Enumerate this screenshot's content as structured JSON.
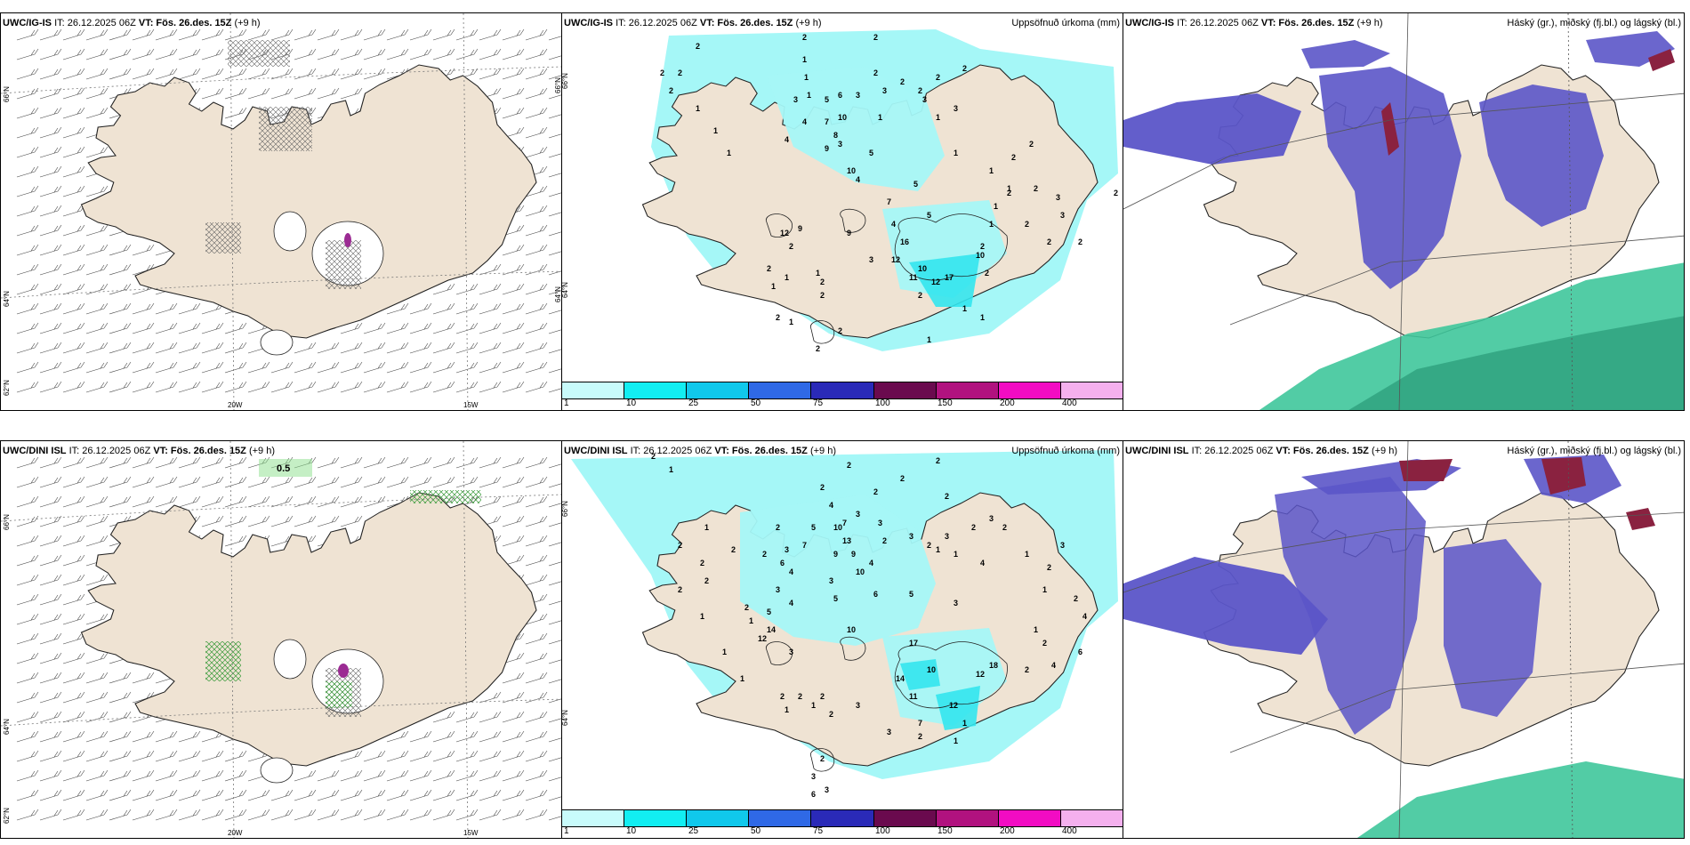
{
  "colors": {
    "land": "#efe3d3",
    "coast": "#222222",
    "precip": "#a5f7f7",
    "precip_heavy": "#33e6ee",
    "cloud_high": "#5b55c8",
    "cloud_mid": "#3ad0e0",
    "cloud_low": "#3fc79b",
    "cloud_red": "#8a2240"
  },
  "panels": {
    "ig_wind": {
      "model": "UWC/IG-IS",
      "it": "IT: 26.12.2025 06Z",
      "vt": "VT: Fös. 26.des. 15Z",
      "lead": "(+9 h)",
      "lat1": "66°N",
      "lat2": "64°N",
      "lat3": "62°N",
      "lon1": "20W",
      "lon2": "15W"
    },
    "ig_precip": {
      "model": "UWC/IG-IS",
      "it": "IT: 26.12.2025 06Z",
      "vt": "VT: Fös. 26.des. 15Z",
      "lead": "(+9 h)",
      "right_title": "Uppsöfnuð úrkoma (mm)",
      "lat1": "66°N",
      "lat2": "64°N"
    },
    "ig_cloud": {
      "model": "UWC/IG-IS",
      "it": "IT: 26.12.2025 06Z",
      "vt": "VT: Fös. 26.des. 15Z",
      "lead": "(+9 h)",
      "right_title": "Háský (gr.), miðský (fj.bl.) og lágský (bl.)"
    },
    "dini_wind": {
      "model": "UWC/DINI ISL",
      "it": "IT: 26.12.2025 06Z",
      "vt": "VT: Fös. 26.des. 15Z",
      "lead": "(+9 h)",
      "lat1": "66°N",
      "lat2": "64°N",
      "lat3": "62°N",
      "lon1": "20W",
      "lon2": "15W",
      "marker": "0.5"
    },
    "dini_precip": {
      "model": "UWC/DINI ISL",
      "it": "IT: 26.12.2025 06Z",
      "vt": "VT: Fös. 26.des. 15Z",
      "lead": "(+9 h)",
      "right_title": "Uppsöfnuð úrkoma (mm)",
      "lat1": "66°N",
      "lat2": "64°N"
    },
    "dini_cloud": {
      "model": "UWC/DINI ISL",
      "it": "IT: 26.12.2025 06Z",
      "vt": "VT: Fös. 26.des. 15Z",
      "lead": "(+9 h)",
      "right_title": "Háský (gr.), miðský (fj.bl.) og lágský (bl.)"
    }
  },
  "colorbar": {
    "labels": [
      "1",
      "10",
      "25",
      "50",
      "75",
      "100",
      "150",
      "200",
      "400"
    ],
    "colors": [
      "#c8fbfb",
      "#12eef2",
      "#10c8ec",
      "#2f69e6",
      "#2a2ab8",
      "#6a0a4e",
      "#b1127f",
      "#f20cc3",
      "#f5b0ee"
    ]
  },
  "precip_ig": [
    {
      "v": "2",
      "x": 150,
      "y": 40
    },
    {
      "v": "2",
      "x": 270,
      "y": 30
    },
    {
      "v": "2",
      "x": 350,
      "y": 30
    },
    {
      "v": "2",
      "x": 350,
      "y": 70
    },
    {
      "v": "2",
      "x": 110,
      "y": 70
    },
    {
      "v": "2",
      "x": 130,
      "y": 70
    },
    {
      "v": "2",
      "x": 120,
      "y": 90
    },
    {
      "v": "2",
      "x": 380,
      "y": 80
    },
    {
      "v": "2",
      "x": 400,
      "y": 90
    },
    {
      "v": "2",
      "x": 450,
      "y": 65
    },
    {
      "v": "2",
      "x": 420,
      "y": 75
    },
    {
      "v": "1",
      "x": 270,
      "y": 55
    },
    {
      "v": "1",
      "x": 272,
      "y": 75
    },
    {
      "v": "1",
      "x": 275,
      "y": 95
    },
    {
      "v": "1",
      "x": 150,
      "y": 110
    },
    {
      "v": "1",
      "x": 170,
      "y": 135
    },
    {
      "v": "1",
      "x": 185,
      "y": 160
    },
    {
      "v": "1",
      "x": 355,
      "y": 120
    },
    {
      "v": "1",
      "x": 420,
      "y": 120
    },
    {
      "v": "1",
      "x": 440,
      "y": 160
    },
    {
      "v": "1",
      "x": 480,
      "y": 180
    },
    {
      "v": "1",
      "x": 500,
      "y": 200
    },
    {
      "v": "3",
      "x": 405,
      "y": 100
    },
    {
      "v": "3",
      "x": 440,
      "y": 110
    },
    {
      "v": "3",
      "x": 260,
      "y": 100
    },
    {
      "v": "3",
      "x": 310,
      "y": 150
    },
    {
      "v": "3",
      "x": 330,
      "y": 95
    },
    {
      "v": "3",
      "x": 360,
      "y": 90
    },
    {
      "v": "4",
      "x": 270,
      "y": 125
    },
    {
      "v": "4",
      "x": 250,
      "y": 145
    },
    {
      "v": "4",
      "x": 330,
      "y": 190
    },
    {
      "v": "5",
      "x": 295,
      "y": 100
    },
    {
      "v": "5",
      "x": 345,
      "y": 160
    },
    {
      "v": "5",
      "x": 395,
      "y": 195
    },
    {
      "v": "6",
      "x": 310,
      "y": 95
    },
    {
      "v": "7",
      "x": 295,
      "y": 125
    },
    {
      "v": "7",
      "x": 365,
      "y": 215
    },
    {
      "v": "8",
      "x": 305,
      "y": 140
    },
    {
      "v": "9",
      "x": 295,
      "y": 155
    },
    {
      "v": "9",
      "x": 320,
      "y": 250
    },
    {
      "v": "9",
      "x": 265,
      "y": 245
    },
    {
      "v": "10",
      "x": 310,
      "y": 120
    },
    {
      "v": "10",
      "x": 320,
      "y": 180
    },
    {
      "v": "10",
      "x": 400,
      "y": 290
    },
    {
      "v": "12",
      "x": 370,
      "y": 280
    },
    {
      "v": "12",
      "x": 415,
      "y": 305
    },
    {
      "v": "12",
      "x": 245,
      "y": 250
    },
    {
      "v": "16",
      "x": 380,
      "y": 260
    },
    {
      "v": "11",
      "x": 390,
      "y": 300
    },
    {
      "v": "17",
      "x": 430,
      "y": 300
    },
    {
      "v": "10",
      "x": 465,
      "y": 275
    },
    {
      "v": "2",
      "x": 400,
      "y": 320
    },
    {
      "v": "2",
      "x": 475,
      "y": 295
    },
    {
      "v": "2",
      "x": 255,
      "y": 265
    },
    {
      "v": "2",
      "x": 230,
      "y": 290
    },
    {
      "v": "2",
      "x": 290,
      "y": 305
    },
    {
      "v": "2",
      "x": 240,
      "y": 345
    },
    {
      "v": "2",
      "x": 290,
      "y": 320
    },
    {
      "v": "1",
      "x": 250,
      "y": 300
    },
    {
      "v": "1",
      "x": 235,
      "y": 310
    },
    {
      "v": "1",
      "x": 285,
      "y": 295
    },
    {
      "v": "1",
      "x": 255,
      "y": 350
    },
    {
      "v": "1",
      "x": 450,
      "y": 335
    },
    {
      "v": "1",
      "x": 470,
      "y": 345
    },
    {
      "v": "1",
      "x": 410,
      "y": 370
    },
    {
      "v": "2",
      "x": 310,
      "y": 360
    },
    {
      "v": "2",
      "x": 285,
      "y": 380
    },
    {
      "v": "1",
      "x": 480,
      "y": 240
    },
    {
      "v": "2",
      "x": 530,
      "y": 200
    },
    {
      "v": "2",
      "x": 505,
      "y": 165
    },
    {
      "v": "2",
      "x": 525,
      "y": 150
    },
    {
      "v": "3",
      "x": 555,
      "y": 210
    },
    {
      "v": "3",
      "x": 560,
      "y": 230
    },
    {
      "v": "2",
      "x": 500,
      "y": 205
    },
    {
      "v": "1",
      "x": 485,
      "y": 220
    },
    {
      "v": "2",
      "x": 520,
      "y": 240
    },
    {
      "v": "2",
      "x": 545,
      "y": 260
    },
    {
      "v": "2",
      "x": 620,
      "y": 205
    },
    {
      "v": "2",
      "x": 580,
      "y": 260
    },
    {
      "v": "5",
      "x": 410,
      "y": 230
    },
    {
      "v": "4",
      "x": 370,
      "y": 240
    },
    {
      "v": "3",
      "x": 345,
      "y": 280
    },
    {
      "v": "2",
      "x": 470,
      "y": 265
    }
  ],
  "precip_dini": [
    {
      "v": "2",
      "x": 100,
      "y": 20
    },
    {
      "v": "1",
      "x": 120,
      "y": 35
    },
    {
      "v": "2",
      "x": 320,
      "y": 30
    },
    {
      "v": "2",
      "x": 420,
      "y": 25
    },
    {
      "v": "2",
      "x": 380,
      "y": 45
    },
    {
      "v": "2",
      "x": 350,
      "y": 60
    },
    {
      "v": "2",
      "x": 430,
      "y": 65
    },
    {
      "v": "2",
      "x": 290,
      "y": 55
    },
    {
      "v": "4",
      "x": 300,
      "y": 75
    },
    {
      "v": "10",
      "x": 305,
      "y": 100
    },
    {
      "v": "13",
      "x": 315,
      "y": 115
    },
    {
      "v": "9",
      "x": 305,
      "y": 130
    },
    {
      "v": "9",
      "x": 325,
      "y": 130
    },
    {
      "v": "10",
      "x": 330,
      "y": 150
    },
    {
      "v": "7",
      "x": 315,
      "y": 95
    },
    {
      "v": "5",
      "x": 280,
      "y": 100
    },
    {
      "v": "7",
      "x": 270,
      "y": 120
    },
    {
      "v": "3",
      "x": 250,
      "y": 125
    },
    {
      "v": "2",
      "x": 240,
      "y": 100
    },
    {
      "v": "4",
      "x": 255,
      "y": 150
    },
    {
      "v": "6",
      "x": 245,
      "y": 140
    },
    {
      "v": "3",
      "x": 330,
      "y": 85
    },
    {
      "v": "3",
      "x": 355,
      "y": 95
    },
    {
      "v": "4",
      "x": 345,
      "y": 140
    },
    {
      "v": "2",
      "x": 360,
      "y": 115
    },
    {
      "v": "3",
      "x": 300,
      "y": 160
    },
    {
      "v": "5",
      "x": 305,
      "y": 180
    },
    {
      "v": "6",
      "x": 350,
      "y": 175
    },
    {
      "v": "5",
      "x": 390,
      "y": 175
    },
    {
      "v": "3",
      "x": 390,
      "y": 110
    },
    {
      "v": "3",
      "x": 430,
      "y": 110
    },
    {
      "v": "1",
      "x": 420,
      "y": 125
    },
    {
      "v": "1",
      "x": 440,
      "y": 130
    },
    {
      "v": "2",
      "x": 460,
      "y": 100
    },
    {
      "v": "3",
      "x": 480,
      "y": 90
    },
    {
      "v": "2",
      "x": 495,
      "y": 100
    },
    {
      "v": "1",
      "x": 520,
      "y": 130
    },
    {
      "v": "2",
      "x": 545,
      "y": 145
    },
    {
      "v": "1",
      "x": 540,
      "y": 170
    },
    {
      "v": "3",
      "x": 560,
      "y": 120
    },
    {
      "v": "2",
      "x": 575,
      "y": 180
    },
    {
      "v": "4",
      "x": 585,
      "y": 200
    },
    {
      "v": "6",
      "x": 580,
      "y": 240
    },
    {
      "v": "4",
      "x": 550,
      "y": 255
    },
    {
      "v": "2",
      "x": 540,
      "y": 230
    },
    {
      "v": "1",
      "x": 530,
      "y": 215
    },
    {
      "v": "2",
      "x": 520,
      "y": 260
    },
    {
      "v": "10",
      "x": 320,
      "y": 215
    },
    {
      "v": "14",
      "x": 230,
      "y": 215
    },
    {
      "v": "12",
      "x": 220,
      "y": 225
    },
    {
      "v": "5",
      "x": 230,
      "y": 195
    },
    {
      "v": "4",
      "x": 255,
      "y": 185
    },
    {
      "v": "3",
      "x": 240,
      "y": 170
    },
    {
      "v": "2",
      "x": 205,
      "y": 190
    },
    {
      "v": "1",
      "x": 210,
      "y": 205
    },
    {
      "v": "3",
      "x": 255,
      "y": 240
    },
    {
      "v": "17",
      "x": 390,
      "y": 230
    },
    {
      "v": "14",
      "x": 375,
      "y": 270
    },
    {
      "v": "11",
      "x": 390,
      "y": 290
    },
    {
      "v": "10",
      "x": 410,
      "y": 260
    },
    {
      "v": "12",
      "x": 465,
      "y": 265
    },
    {
      "v": "18",
      "x": 480,
      "y": 255
    },
    {
      "v": "12",
      "x": 435,
      "y": 300
    },
    {
      "v": "7",
      "x": 400,
      "y": 320
    },
    {
      "v": "2",
      "x": 245,
      "y": 290
    },
    {
      "v": "2",
      "x": 265,
      "y": 290
    },
    {
      "v": "2",
      "x": 290,
      "y": 290
    },
    {
      "v": "1",
      "x": 280,
      "y": 300
    },
    {
      "v": "1",
      "x": 250,
      "y": 305
    },
    {
      "v": "2",
      "x": 300,
      "y": 310
    },
    {
      "v": "3",
      "x": 330,
      "y": 300
    },
    {
      "v": "3",
      "x": 365,
      "y": 330
    },
    {
      "v": "2",
      "x": 400,
      "y": 335
    },
    {
      "v": "1",
      "x": 450,
      "y": 320
    },
    {
      "v": "1",
      "x": 440,
      "y": 340
    },
    {
      "v": "2",
      "x": 290,
      "y": 360
    },
    {
      "v": "3",
      "x": 280,
      "y": 380
    },
    {
      "v": "6",
      "x": 280,
      "y": 400
    },
    {
      "v": "3",
      "x": 295,
      "y": 395
    },
    {
      "v": "1",
      "x": 180,
      "y": 240
    },
    {
      "v": "1",
      "x": 155,
      "y": 200
    },
    {
      "v": "2",
      "x": 160,
      "y": 160
    },
    {
      "v": "2",
      "x": 130,
      "y": 120
    },
    {
      "v": "1",
      "x": 200,
      "y": 270
    },
    {
      "v": "2",
      "x": 155,
      "y": 140
    },
    {
      "v": "2",
      "x": 130,
      "y": 170
    },
    {
      "v": "2",
      "x": 190,
      "y": 125
    },
    {
      "v": "2",
      "x": 410,
      "y": 120
    },
    {
      "v": "4",
      "x": 470,
      "y": 140
    },
    {
      "v": "3",
      "x": 440,
      "y": 185
    },
    {
      "v": "2",
      "x": 225,
      "y": 130
    },
    {
      "v": "1",
      "x": 160,
      "y": 100
    }
  ]
}
